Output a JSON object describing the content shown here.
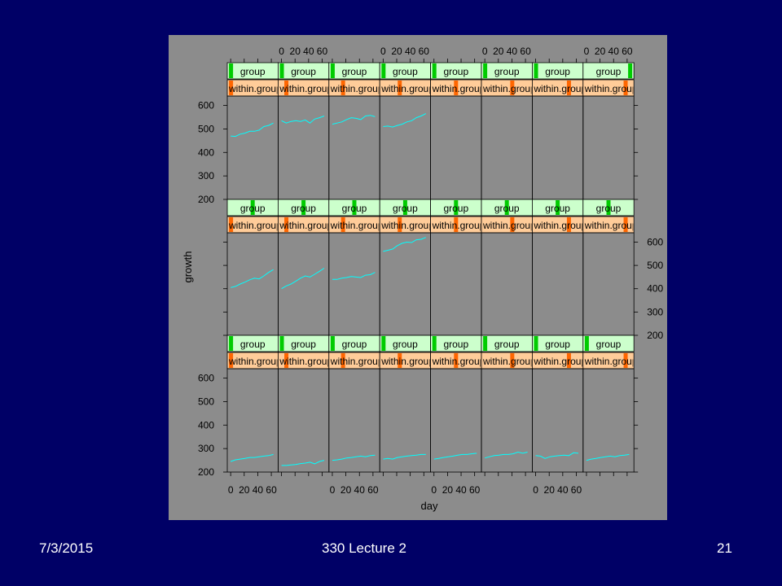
{
  "slide": {
    "date": "7/3/2015",
    "title": "330 Lecture 2",
    "page": "21"
  },
  "colors": {
    "slide_background": "#000066",
    "plot_background": "#8c8c8c",
    "strip_group": "#ccffcc",
    "strip_within": "#ffcc99",
    "marker_group": "#00cc00",
    "marker_within": "#ff6600",
    "line": "#00ffff",
    "footer_text": "#ffffff"
  },
  "chart_data": {
    "type": "line",
    "xlabel": "day",
    "ylabel": "growth",
    "xlim": [
      -5,
      70
    ],
    "ylim": [
      200,
      640
    ],
    "x_ticks": [
      "0",
      "20",
      "40",
      "60"
    ],
    "y_ticks": [
      "200",
      "300",
      "400",
      "500",
      "600"
    ],
    "layout": {
      "columns": 8,
      "rows": 3
    },
    "strip_labels": [
      "group",
      "within.group"
    ],
    "panels": [
      {
        "row": 1,
        "col": 1,
        "group_level": 0.02,
        "within_level": 0.02,
        "x": [
          0,
          7,
          14,
          21,
          28,
          35,
          42,
          49,
          56,
          63
        ],
        "y": [
          470,
          468,
          478,
          482,
          490,
          490,
          495,
          510,
          515,
          525
        ]
      },
      {
        "row": 1,
        "col": 2,
        "group_level": 0.02,
        "within_level": 0.12,
        "x": [
          0,
          7,
          14,
          21,
          28,
          35,
          42,
          49,
          56,
          63
        ],
        "y": [
          535,
          525,
          532,
          535,
          532,
          538,
          525,
          542,
          548,
          555
        ]
      },
      {
        "row": 1,
        "col": 3,
        "group_level": 0.02,
        "within_level": 0.25,
        "x": [
          0,
          7,
          14,
          21,
          28,
          35,
          42,
          49,
          56,
          63
        ],
        "y": [
          520,
          525,
          530,
          540,
          548,
          545,
          540,
          555,
          558,
          552
        ]
      },
      {
        "row": 1,
        "col": 4,
        "group_level": 0.02,
        "within_level": 0.38,
        "x": [
          0,
          7,
          14,
          21,
          28,
          35,
          42,
          49,
          56,
          63
        ],
        "y": [
          510,
          512,
          508,
          515,
          520,
          530,
          535,
          548,
          555,
          565
        ]
      },
      {
        "row": 1,
        "col": 5,
        "group_level": 0.02,
        "within_level": 0.5,
        "x": [],
        "y": []
      },
      {
        "row": 1,
        "col": 6,
        "group_level": 0.02,
        "within_level": 0.62,
        "x": [],
        "y": []
      },
      {
        "row": 1,
        "col": 7,
        "group_level": 0.02,
        "within_level": 0.75,
        "x": [],
        "y": []
      },
      {
        "row": 1,
        "col": 8,
        "group_level": 0.98,
        "within_level": 0.88,
        "x": [],
        "y": []
      },
      {
        "row": 2,
        "col": 1,
        "group_level": 0.5,
        "within_level": 0.02,
        "x": [
          0,
          7,
          14,
          21,
          28,
          35,
          42,
          49,
          56,
          63
        ],
        "y": [
          405,
          410,
          420,
          428,
          438,
          445,
          442,
          455,
          470,
          482
        ]
      },
      {
        "row": 2,
        "col": 2,
        "group_level": 0.5,
        "within_level": 0.12,
        "x": [
          0,
          7,
          14,
          21,
          28,
          35,
          42,
          49,
          56,
          63
        ],
        "y": [
          400,
          412,
          420,
          432,
          445,
          455,
          450,
          462,
          475,
          488
        ]
      },
      {
        "row": 2,
        "col": 3,
        "group_level": 0.5,
        "within_level": 0.25,
        "x": [
          0,
          7,
          14,
          21,
          28,
          35,
          42,
          49,
          56,
          63
        ],
        "y": [
          440,
          440,
          445,
          448,
          452,
          450,
          448,
          458,
          460,
          470
        ]
      },
      {
        "row": 2,
        "col": 4,
        "group_level": 0.5,
        "within_level": 0.38,
        "x": [
          0,
          7,
          14,
          21,
          28,
          35,
          42,
          49,
          56,
          63
        ],
        "y": [
          560,
          565,
          570,
          585,
          595,
          600,
          598,
          610,
          612,
          620
        ]
      },
      {
        "row": 2,
        "col": 5,
        "group_level": 0.5,
        "within_level": 0.5,
        "x": [],
        "y": []
      },
      {
        "row": 2,
        "col": 6,
        "group_level": 0.5,
        "within_level": 0.62,
        "x": [],
        "y": []
      },
      {
        "row": 2,
        "col": 7,
        "group_level": 0.5,
        "within_level": 0.75,
        "x": [],
        "y": []
      },
      {
        "row": 2,
        "col": 8,
        "group_level": 0.5,
        "within_level": 0.88,
        "x": [],
        "y": []
      },
      {
        "row": 3,
        "col": 1,
        "group_level": 0.02,
        "within_level": 0.02,
        "x": [
          0,
          7,
          14,
          21,
          28,
          35,
          42,
          49,
          56,
          63
        ],
        "y": [
          245,
          252,
          255,
          258,
          262,
          262,
          265,
          268,
          270,
          275
        ]
      },
      {
        "row": 3,
        "col": 2,
        "group_level": 0.02,
        "within_level": 0.12,
        "x": [
          0,
          7,
          14,
          21,
          28,
          35,
          42,
          49,
          56,
          63
        ],
        "y": [
          228,
          228,
          230,
          232,
          236,
          238,
          242,
          235,
          245,
          250
        ]
      },
      {
        "row": 3,
        "col": 3,
        "group_level": 0.02,
        "within_level": 0.25,
        "x": [
          0,
          7,
          14,
          21,
          28,
          35,
          42,
          49,
          56,
          63
        ],
        "y": [
          250,
          252,
          255,
          260,
          262,
          265,
          268,
          265,
          270,
          272
        ]
      },
      {
        "row": 3,
        "col": 4,
        "group_level": 0.02,
        "within_level": 0.38,
        "x": [
          0,
          7,
          14,
          21,
          28,
          35,
          42,
          49,
          56,
          63
        ],
        "y": [
          255,
          258,
          255,
          262,
          265,
          268,
          270,
          272,
          275,
          275
        ]
      },
      {
        "row": 3,
        "col": 5,
        "group_level": 0.02,
        "within_level": 0.5,
        "x": [
          0,
          7,
          14,
          21,
          28,
          35,
          42,
          49,
          56,
          63
        ],
        "y": [
          255,
          258,
          262,
          265,
          268,
          272,
          275,
          275,
          278,
          280
        ]
      },
      {
        "row": 3,
        "col": 6,
        "group_level": 0.02,
        "within_level": 0.62,
        "x": [
          0,
          7,
          14,
          21,
          28,
          35,
          42,
          49,
          56,
          63
        ],
        "y": [
          260,
          265,
          270,
          272,
          275,
          275,
          278,
          285,
          280,
          285
        ]
      },
      {
        "row": 3,
        "col": 7,
        "group_level": 0.02,
        "within_level": 0.75,
        "x": [
          0,
          7,
          14,
          21,
          28,
          35,
          42,
          49,
          56,
          63
        ],
        "y": [
          270,
          268,
          258,
          265,
          268,
          270,
          272,
          270,
          282,
          280
        ]
      },
      {
        "row": 3,
        "col": 8,
        "group_level": 0.02,
        "within_level": 0.88,
        "x": [
          0,
          7,
          14,
          21,
          28,
          35,
          42,
          49,
          56,
          63
        ],
        "y": [
          250,
          255,
          258,
          262,
          265,
          268,
          265,
          270,
          272,
          275
        ]
      }
    ]
  }
}
